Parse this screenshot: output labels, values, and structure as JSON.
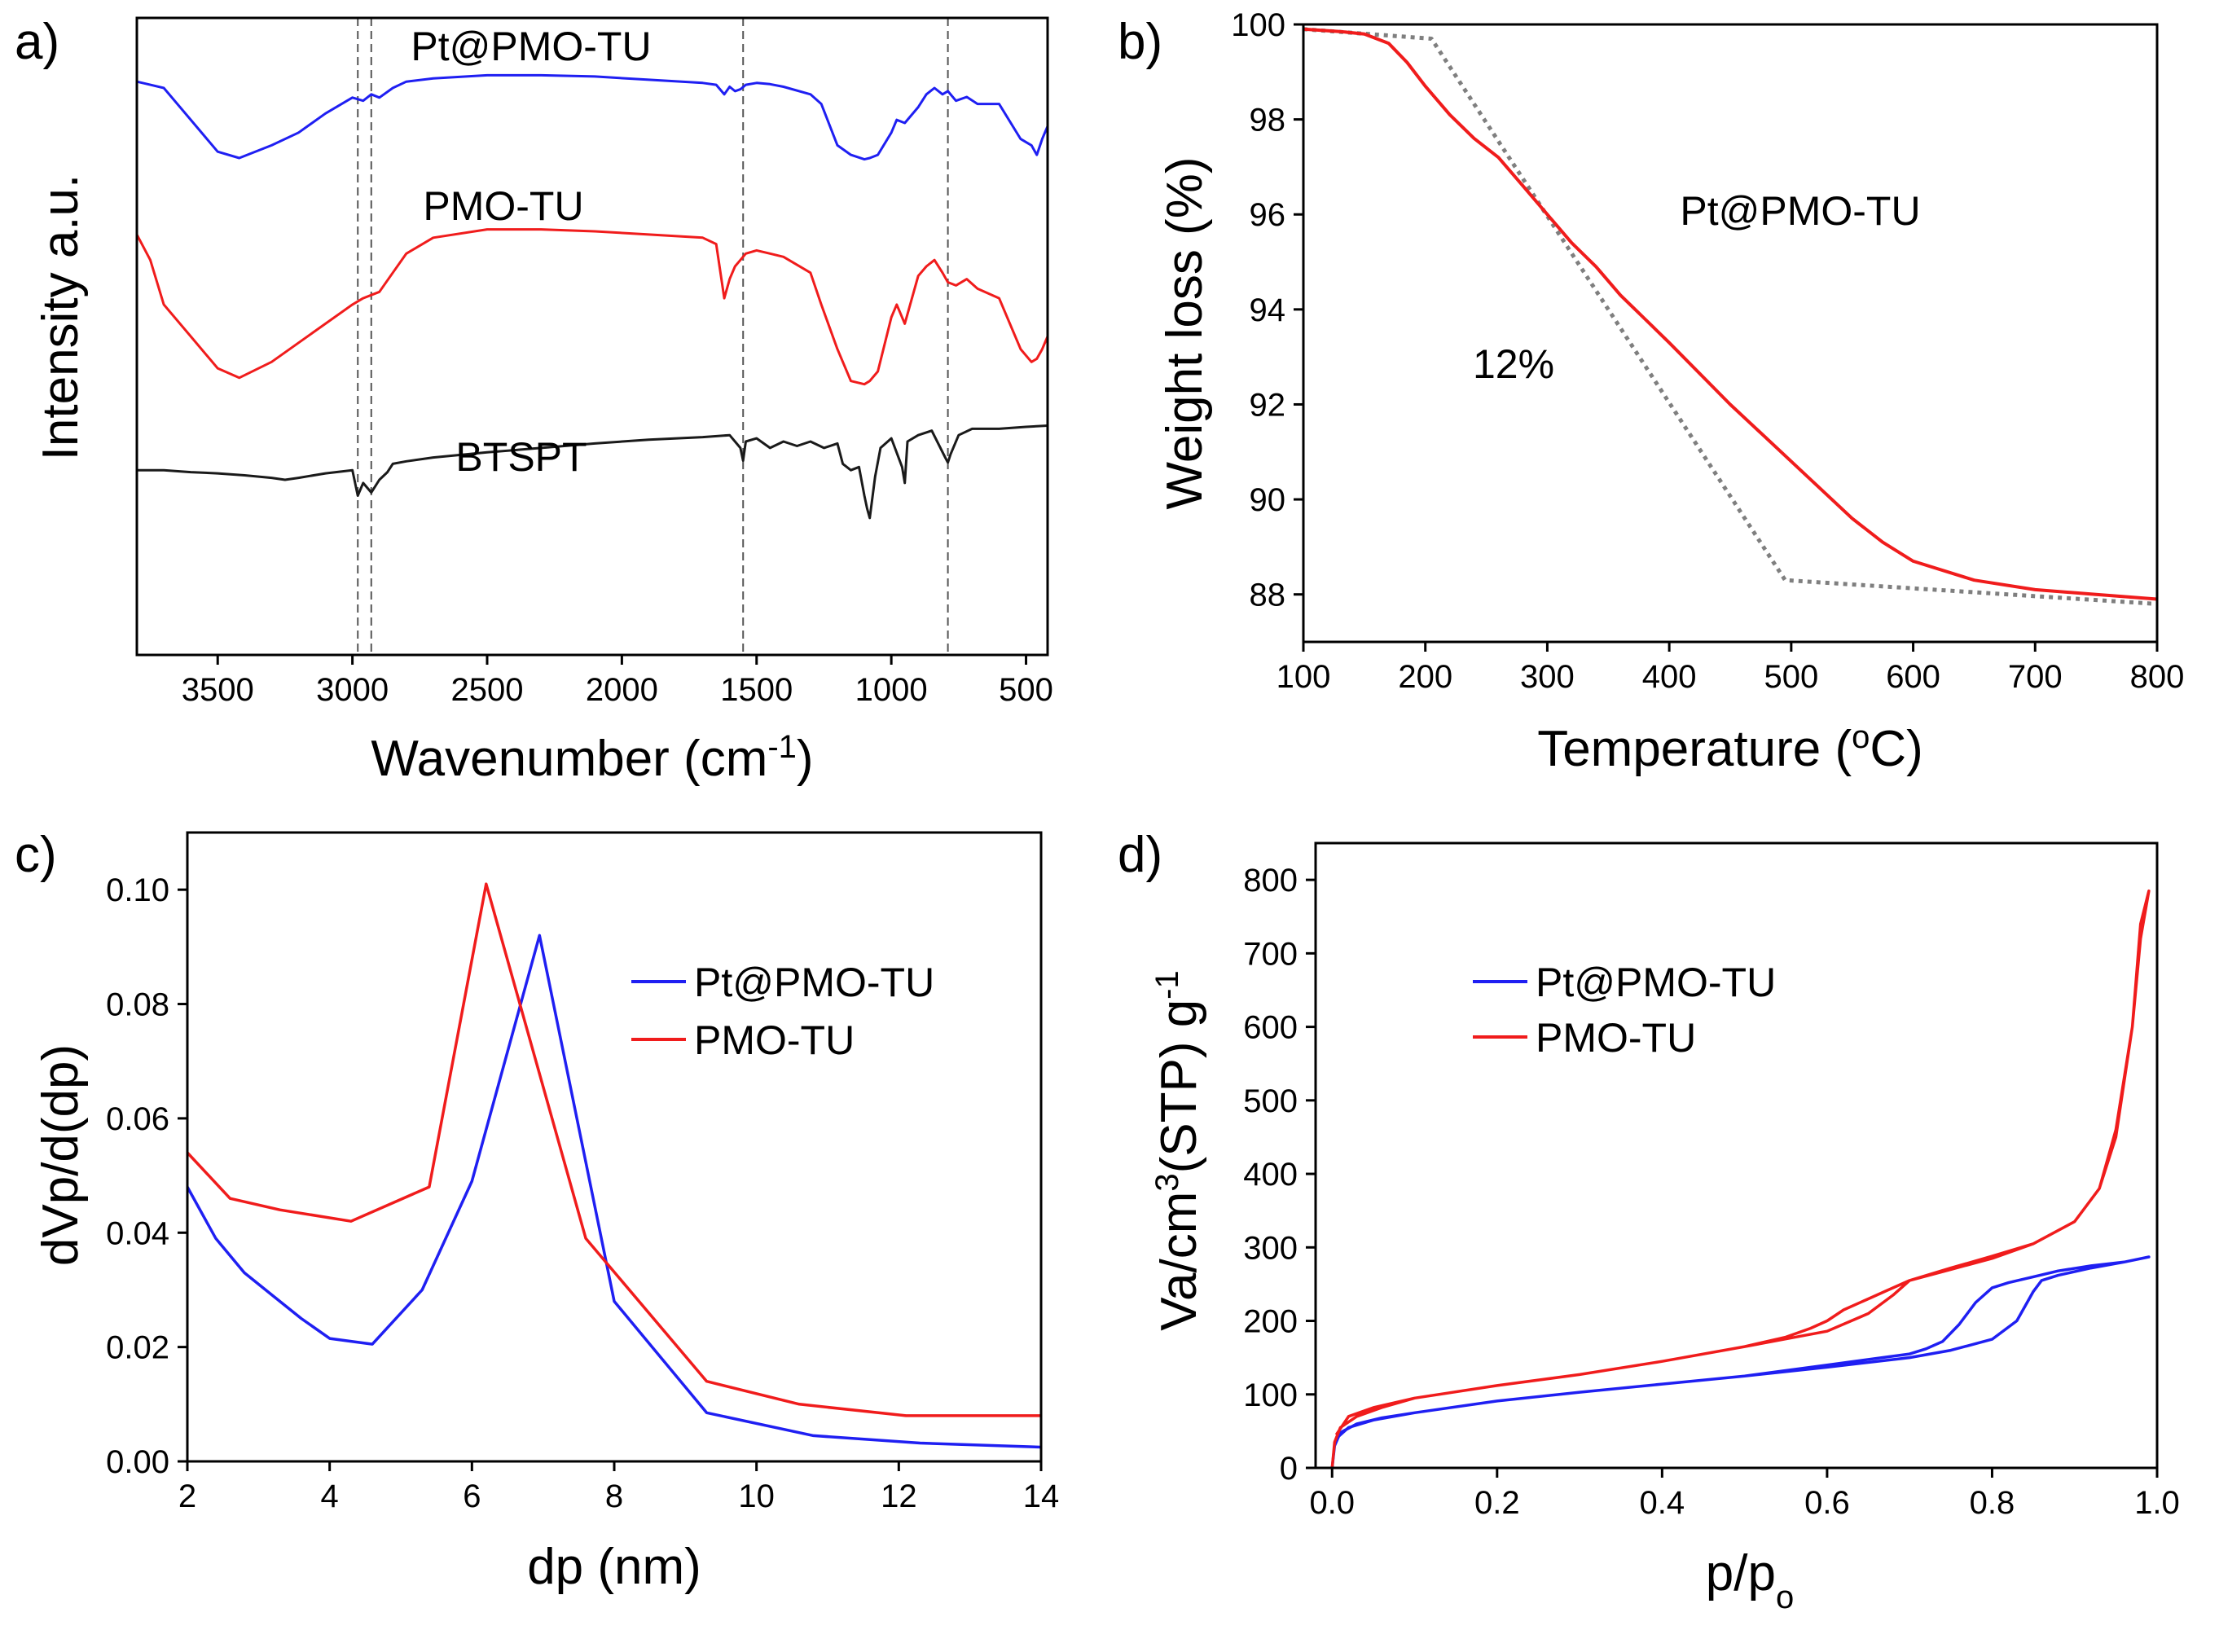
{
  "colors": {
    "blue": "#1f1ff2",
    "red": "#f01c1c",
    "black": "#1a1a1a",
    "gray": "#7f7f7f"
  },
  "chart_data": [
    {
      "id": "a",
      "panel_label": "a)",
      "type": "line",
      "title": "",
      "xlabel": "Wavenumber (cm",
      "xlabel_sup": "-1",
      "xlabel_end": ")",
      "ylabel": "Intensity a.u.",
      "xlim": [
        3800,
        420
      ],
      "ylim": [
        0,
        100
      ],
      "xticks": [
        3500,
        3000,
        2500,
        2000,
        1500,
        1000,
        500
      ],
      "yticks": [],
      "vlines": [
        2980,
        2930,
        1550,
        790
      ],
      "series": [
        {
          "name": "Pt@PMO-TU",
          "color": "#1f1ff2",
          "x": [
            3800,
            3750,
            3700,
            3600,
            3500,
            3420,
            3300,
            3200,
            3100,
            3000,
            2960,
            2930,
            2900,
            2850,
            2800,
            2700,
            2500,
            2300,
            2100,
            1900,
            1700,
            1650,
            1620,
            1600,
            1580,
            1560,
            1540,
            1500,
            1450,
            1400,
            1300,
            1260,
            1200,
            1150,
            1100,
            1080,
            1050,
            1000,
            980,
            950,
            900,
            870,
            840,
            810,
            790,
            760,
            720,
            680,
            600,
            520,
            480,
            460,
            440,
            420
          ],
          "y": [
            90,
            89.5,
            89,
            84,
            79,
            78,
            80,
            82,
            85,
            87.5,
            87,
            88,
            87.5,
            89,
            90,
            90.5,
            91,
            91,
            90.8,
            90.3,
            89.8,
            89.5,
            88,
            89.2,
            88.5,
            88.8,
            89.5,
            89.8,
            89.6,
            89.2,
            88,
            86.5,
            80,
            78.5,
            77.8,
            78,
            78.5,
            82,
            84,
            83.5,
            86,
            88,
            89,
            88,
            88.5,
            87,
            87.6,
            86.5,
            86.5,
            81,
            80,
            78.5,
            81,
            83
          ]
        },
        {
          "name": "PMO-TU",
          "color": "#f01c1c",
          "x": [
            3800,
            3750,
            3700,
            3600,
            3500,
            3420,
            3300,
            3200,
            3100,
            3000,
            2960,
            2930,
            2900,
            2850,
            2800,
            2700,
            2500,
            2300,
            2100,
            1900,
            1700,
            1650,
            1620,
            1600,
            1580,
            1560,
            1540,
            1500,
            1450,
            1400,
            1300,
            1260,
            1200,
            1150,
            1100,
            1080,
            1050,
            1000,
            980,
            950,
            900,
            870,
            840,
            810,
            790,
            760,
            720,
            680,
            600,
            520,
            480,
            460,
            440,
            420
          ],
          "y": [
            66,
            62,
            55,
            50,
            45,
            43.5,
            46,
            49,
            52,
            55,
            56,
            56.5,
            57,
            60,
            63,
            65.5,
            66.8,
            66.8,
            66.5,
            66,
            65.5,
            64.5,
            56,
            59,
            61,
            62,
            63,
            63.5,
            63,
            62.5,
            60,
            55,
            48,
            43,
            42.5,
            43,
            44.5,
            53,
            55,
            52,
            59.5,
            61,
            62,
            60,
            58.5,
            58,
            59,
            57.5,
            56,
            48,
            46,
            46.5,
            48,
            50
          ]
        },
        {
          "name": "BTSPT",
          "color": "#1a1a1a",
          "x": [
            3800,
            3700,
            3600,
            3500,
            3400,
            3300,
            3250,
            3200,
            3100,
            3000,
            2980,
            2960,
            2930,
            2900,
            2870,
            2850,
            2800,
            2700,
            2500,
            2300,
            2100,
            1900,
            1700,
            1600,
            1560,
            1550,
            1540,
            1500,
            1450,
            1400,
            1350,
            1300,
            1250,
            1200,
            1180,
            1150,
            1120,
            1100,
            1090,
            1080,
            1060,
            1040,
            1000,
            960,
            950,
            940,
            900,
            850,
            800,
            790,
            780,
            750,
            700,
            600,
            500,
            420
          ],
          "y": [
            29,
            29,
            28.7,
            28.5,
            28.2,
            27.8,
            27.5,
            27.8,
            28.5,
            29,
            25,
            27,
            25.5,
            27.5,
            28.7,
            30,
            30.4,
            31,
            31.8,
            32.5,
            33.2,
            33.8,
            34.2,
            34.5,
            32.5,
            30.5,
            33.5,
            34,
            32.5,
            33.5,
            32.8,
            33.5,
            32.5,
            33.2,
            30,
            29,
            29.5,
            25,
            23,
            21.5,
            28,
            32.5,
            34,
            29.5,
            27,
            33.5,
            34.5,
            35.2,
            31,
            30.2,
            31.5,
            34.5,
            35.5,
            35.5,
            35.8,
            36
          ]
        }
      ],
      "annotations": [
        "Pt@PMO-TU",
        "PMO-TU",
        "BTSPT"
      ]
    },
    {
      "id": "b",
      "panel_label": "b)",
      "type": "line",
      "title": "",
      "xlabel": "Temperature (",
      "xlabel_sup": "o",
      "xlabel_end": "C)",
      "ylabel": "Weight loss (%)",
      "xlim": [
        100,
        800
      ],
      "ylim": [
        87,
        100
      ],
      "xticks": [
        100,
        200,
        300,
        400,
        500,
        600,
        700,
        800
      ],
      "yticks": [
        88,
        90,
        92,
        94,
        96,
        98,
        100
      ],
      "series": [
        {
          "name": "Pt@PMO-TU",
          "color": "#f01c1c",
          "x": [
            100,
            130,
            150,
            170,
            185,
            200,
            220,
            240,
            260,
            280,
            300,
            320,
            340,
            360,
            380,
            400,
            450,
            500,
            550,
            575,
            600,
            650,
            700,
            750,
            800
          ],
          "y": [
            99.9,
            99.85,
            99.8,
            99.6,
            99.2,
            98.7,
            98.1,
            97.6,
            97.2,
            96.6,
            96.0,
            95.4,
            94.9,
            94.3,
            93.8,
            93.3,
            92.0,
            90.8,
            89.6,
            89.1,
            88.7,
            88.3,
            88.1,
            88.0,
            87.9
          ]
        },
        {
          "name": "dotted fit",
          "color": "#7f7f7f",
          "dash": true,
          "x": [
            100,
            205,
            495,
            800
          ],
          "y": [
            99.9,
            99.7,
            88.3,
            87.8
          ]
        }
      ],
      "annotations": [
        "Pt@PMO-TU",
        "12%"
      ]
    },
    {
      "id": "c",
      "panel_label": "c)",
      "type": "line",
      "title": "",
      "xlabel": "dp (nm)",
      "ylabel": "dVp/d(dp)",
      "xlim": [
        2,
        14
      ],
      "ylim": [
        0,
        0.11
      ],
      "xticks": [
        2,
        4,
        6,
        8,
        10,
        12,
        14
      ],
      "yticks": [
        0.0,
        0.02,
        0.04,
        0.06,
        0.08,
        0.1
      ],
      "legend_position": "center-right",
      "series": [
        {
          "name": "Pt@PMO-TU",
          "color": "#1f1ff2",
          "x": [
            2,
            2.4,
            2.8,
            3.2,
            3.6,
            4.0,
            4.6,
            5.3,
            6.0,
            6.95,
            8.0,
            9.3,
            10.8,
            12.3,
            14
          ],
          "y": [
            0.048,
            0.039,
            0.033,
            0.029,
            0.025,
            0.0215,
            0.0205,
            0.03,
            0.049,
            0.092,
            0.028,
            0.0085,
            0.0045,
            0.0032,
            0.0025
          ]
        },
        {
          "name": "PMO-TU",
          "color": "#f01c1c",
          "x": [
            2,
            2.6,
            3.3,
            4.3,
            5.4,
            6.2,
            7.6,
            9.3,
            10.6,
            12.1,
            14
          ],
          "y": [
            0.054,
            0.046,
            0.044,
            0.042,
            0.048,
            0.101,
            0.039,
            0.014,
            0.01,
            0.008,
            0.008
          ]
        }
      ]
    },
    {
      "id": "d",
      "panel_label": "d)",
      "type": "line",
      "title": "",
      "xlabel": "p/p",
      "xlabel_sub": "o",
      "ylabel": "Va/cm",
      "ylabel_sup": "3",
      "ylabel_end": "(STP) g",
      "ylabel_sup2": "-1",
      "xlim": [
        -0.02,
        1.0
      ],
      "ylim": [
        0,
        850
      ],
      "xticks": [
        0.0,
        0.2,
        0.4,
        0.6,
        0.8,
        1.0
      ],
      "yticks": [
        0,
        100,
        200,
        300,
        400,
        500,
        600,
        700,
        800
      ],
      "legend_position": "upper-left",
      "series": [
        {
          "name": "Pt@PMO-TU",
          "color": "#1f1ff2",
          "x": [
            0.0,
            0.003,
            0.01,
            0.03,
            0.06,
            0.1,
            0.2,
            0.3,
            0.4,
            0.5,
            0.6,
            0.7,
            0.75,
            0.8,
            0.83,
            0.85,
            0.86,
            0.88,
            0.92,
            0.96,
            0.99,
            0.96,
            0.92,
            0.88,
            0.85,
            0.82,
            0.8,
            0.78,
            0.76,
            0.74,
            0.72,
            0.7,
            0.6,
            0.5,
            0.4,
            0.3,
            0.2,
            0.1,
            0.05,
            0.02,
            0.005
          ],
          "y": [
            0,
            30,
            48,
            60,
            68,
            75,
            91,
            103,
            114,
            125,
            137,
            150,
            160,
            175,
            200,
            240,
            255,
            262,
            272,
            280,
            287,
            280,
            275,
            268,
            260,
            252,
            245,
            225,
            195,
            172,
            162,
            155,
            140,
            125,
            114,
            103,
            91,
            75,
            65,
            55,
            40
          ]
        },
        {
          "name": "PMO-TU",
          "color": "#f01c1c",
          "x": [
            0.0,
            0.003,
            0.01,
            0.03,
            0.06,
            0.1,
            0.2,
            0.3,
            0.4,
            0.5,
            0.6,
            0.65,
            0.68,
            0.7,
            0.75,
            0.8,
            0.85,
            0.9,
            0.93,
            0.95,
            0.97,
            0.98,
            0.99,
            0.98,
            0.97,
            0.95,
            0.93,
            0.9,
            0.85,
            0.8,
            0.75,
            0.7,
            0.67,
            0.65,
            0.62,
            0.6,
            0.58,
            0.55,
            0.5,
            0.4,
            0.3,
            0.2,
            0.1,
            0.05,
            0.02,
            0.005
          ],
          "y": [
            0,
            35,
            55,
            70,
            82,
            95,
            112,
            127,
            145,
            165,
            186,
            210,
            235,
            255,
            270,
            285,
            305,
            335,
            380,
            460,
            600,
            720,
            785,
            740,
            600,
            450,
            380,
            335,
            305,
            288,
            272,
            255,
            240,
            230,
            215,
            200,
            190,
            178,
            165,
            145,
            127,
            112,
            95,
            82,
            70,
            45
          ]
        }
      ]
    }
  ]
}
